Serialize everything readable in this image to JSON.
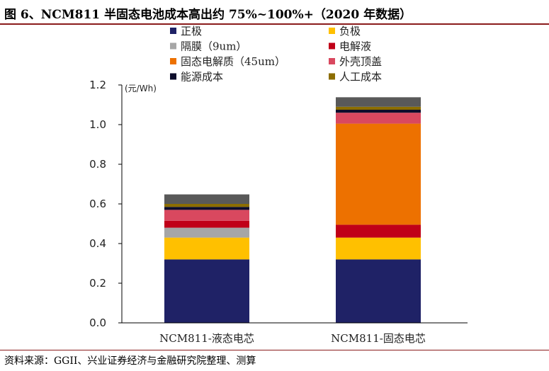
{
  "figure": {
    "title": "图 6、NCM811 半固态电池成本高出约 75%~100%+（2020 年数据）",
    "source": "资料来源：GGII、兴业证券经济与金融研究院整理、测算"
  },
  "chart_data": {
    "type": "bar",
    "stacked": true,
    "unit_label": "(元/Wh)",
    "ylim": [
      0,
      1.2
    ],
    "yticks": [
      "0.0",
      "0.2",
      "0.4",
      "0.6",
      "0.8",
      "1.0",
      "1.2"
    ],
    "categories": [
      "NCM811-液态电芯",
      "NCM811-固态电芯"
    ],
    "legend_placement": "top",
    "series": [
      {
        "name": "正极",
        "color": "#1f2266",
        "values": [
          0.32,
          0.32
        ]
      },
      {
        "name": "负极",
        "color": "#ffc000",
        "values": [
          0.11,
          0.11
        ]
      },
      {
        "name": "隔膜（9um）",
        "color": "#a6a6a6",
        "values": [
          0.05,
          0.0
        ]
      },
      {
        "name": "电解液",
        "color": "#c00018",
        "values": [
          0.035,
          0.065
        ]
      },
      {
        "name": "固态电解质（45um）",
        "color": "#ed7100",
        "values": [
          0.0,
          0.51
        ]
      },
      {
        "name": "外壳顶盖",
        "color": "#d9485f",
        "values": [
          0.055,
          0.055
        ]
      },
      {
        "name": "能源成本",
        "color": "#0d0d2b",
        "values": [
          0.015,
          0.015
        ]
      },
      {
        "name": "人工成本",
        "color": "#8c6d00",
        "values": [
          0.015,
          0.015
        ]
      },
      {
        "name": "",
        "color": "#595959",
        "values": [
          0.048,
          0.048
        ]
      }
    ]
  }
}
